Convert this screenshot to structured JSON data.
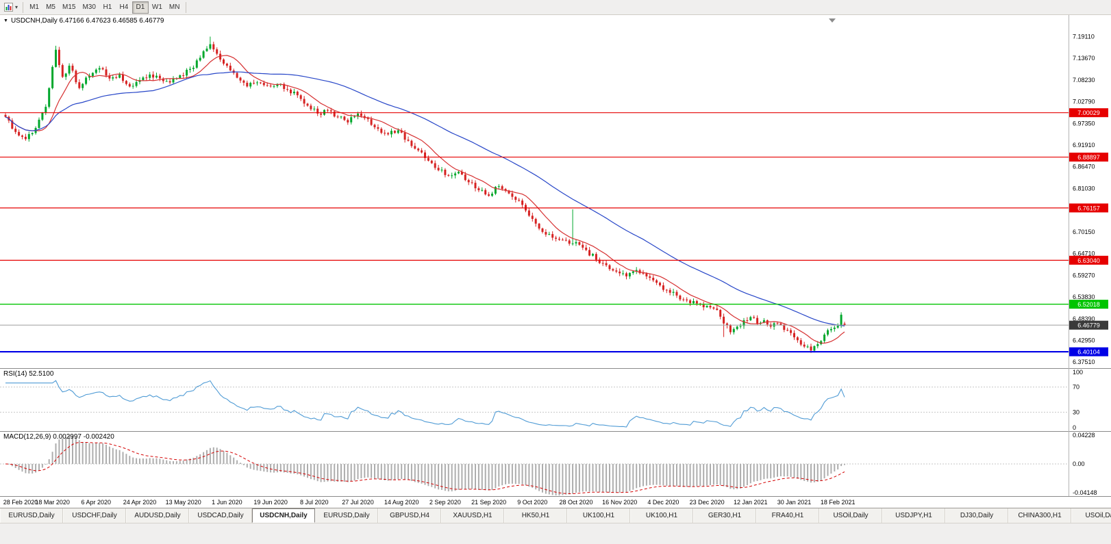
{
  "toolbar": {
    "timeframes": [
      {
        "label": "M1",
        "active": false
      },
      {
        "label": "M5",
        "active": false
      },
      {
        "label": "M15",
        "active": false
      },
      {
        "label": "M30",
        "active": false
      },
      {
        "label": "H1",
        "active": false
      },
      {
        "label": "H4",
        "active": false
      },
      {
        "label": "D1",
        "active": true
      },
      {
        "label": "W1",
        "active": false
      },
      {
        "label": "MN",
        "active": false
      }
    ]
  },
  "icons": {
    "toolbar_caret": "▾",
    "symbol_marker": "▼"
  },
  "chart": {
    "title_text": "USDCNH,Daily 6.47166 6.47623 6.46585 6.46779",
    "rsi_label": "RSI(14) 52.5100",
    "macd_label": "MACD(12,26,9) 0.002997 -0.002420"
  },
  "chart_data": {
    "type": "candlestick",
    "symbol": "USDCNH",
    "timeframe": "Daily",
    "ohlc_current": {
      "open": 6.47166,
      "high": 6.47623,
      "low": 6.46585,
      "close": 6.46779
    },
    "price_range": {
      "min": 6.36,
      "max": 7.245
    },
    "y_axis_ticks": [
      7.1911,
      7.1367,
      7.0823,
      7.0279,
      6.9735,
      6.9191,
      6.8647,
      6.8103,
      6.7559,
      6.7015,
      6.6471,
      6.5927,
      6.5383,
      6.4839,
      6.4295,
      6.3751
    ],
    "levels": [
      {
        "price": 7.00029,
        "label": "7.00029",
        "color": "#e60000",
        "width": 1.2
      },
      {
        "price": 6.88897,
        "label": "6.88897",
        "color": "#e60000",
        "width": 1.2
      },
      {
        "price": 6.76157,
        "label": "6.76157",
        "color": "#e60000",
        "width": 1.2
      },
      {
        "price": 6.6304,
        "label": "6.63040",
        "color": "#e60000",
        "width": 1.2
      },
      {
        "price": 6.52018,
        "label": "6.52018",
        "color": "#00c400",
        "width": 1.4
      },
      {
        "price": 6.40104,
        "label": "6.40104",
        "color": "#0000e6",
        "width": 2.2
      }
    ],
    "current_price": {
      "value": 6.46779,
      "label": "6.46779",
      "badge_color": "#3a3a3a",
      "line_color": "#9c9c9c"
    },
    "x_axis_dates": [
      "28 Feb 2020",
      "18 Mar 2020",
      "6 Apr 2020",
      "24 Apr 2020",
      "13 May 2020",
      "1 Jun 2020",
      "19 Jun 2020",
      "8 Jul 2020",
      "27 Jul 2020",
      "14 Aug 2020",
      "2 Sep 2020",
      "21 Sep 2020",
      "9 Oct 2020",
      "28 Oct 2020",
      "16 Nov 2020",
      "4 Dec 2020",
      "23 Dec 2020",
      "12 Jan 2021",
      "30 Jan 2021",
      "18 Feb 2021"
    ],
    "bars_total": 251,
    "first_label_bar": 1,
    "label_spacing_bars": 13,
    "trend_anchors": [
      [
        0,
        6.99
      ],
      [
        3,
        6.952
      ],
      [
        6,
        6.934
      ],
      [
        9,
        6.962
      ],
      [
        12,
        7.015
      ],
      [
        14,
        7.115
      ],
      [
        15,
        7.158
      ],
      [
        17,
        7.09
      ],
      [
        19,
        7.118
      ],
      [
        22,
        7.062
      ],
      [
        25,
        7.092
      ],
      [
        28,
        7.112
      ],
      [
        31,
        7.086
      ],
      [
        34,
        7.096
      ],
      [
        37,
        7.066
      ],
      [
        40,
        7.082
      ],
      [
        43,
        7.096
      ],
      [
        46,
        7.086
      ],
      [
        49,
        7.076
      ],
      [
        52,
        7.094
      ],
      [
        55,
        7.11
      ],
      [
        58,
        7.138
      ],
      [
        61,
        7.172
      ],
      [
        63,
        7.148
      ],
      [
        66,
        7.118
      ],
      [
        69,
        7.088
      ],
      [
        72,
        7.066
      ],
      [
        75,
        7.076
      ],
      [
        78,
        7.068
      ],
      [
        81,
        7.072
      ],
      [
        84,
        7.058
      ],
      [
        87,
        7.044
      ],
      [
        90,
        7.018
      ],
      [
        93,
        6.998
      ],
      [
        96,
        7.006
      ],
      [
        99,
        6.99
      ],
      [
        102,
        6.976
      ],
      [
        105,
        6.998
      ],
      [
        108,
        6.984
      ],
      [
        111,
        6.96
      ],
      [
        114,
        6.946
      ],
      [
        117,
        6.956
      ],
      [
        120,
        6.93
      ],
      [
        123,
        6.906
      ],
      [
        126,
        6.88
      ],
      [
        129,
        6.856
      ],
      [
        132,
        6.842
      ],
      [
        135,
        6.852
      ],
      [
        138,
        6.826
      ],
      [
        141,
        6.806
      ],
      [
        144,
        6.792
      ],
      [
        147,
        6.816
      ],
      [
        150,
        6.798
      ],
      [
        153,
        6.78
      ],
      [
        156,
        6.742
      ],
      [
        159,
        6.71
      ],
      [
        162,
        6.696
      ],
      [
        165,
        6.682
      ],
      [
        168,
        6.672
      ],
      [
        170,
        6.676
      ],
      [
        173,
        6.656
      ],
      [
        176,
        6.632
      ],
      [
        179,
        6.618
      ],
      [
        182,
        6.602
      ],
      [
        185,
        6.59
      ],
      [
        188,
        6.606
      ],
      [
        191,
        6.59
      ],
      [
        194,
        6.574
      ],
      [
        197,
        6.556
      ],
      [
        200,
        6.542
      ],
      [
        203,
        6.53
      ],
      [
        206,
        6.522
      ],
      [
        209,
        6.516
      ],
      [
        212,
        6.506
      ],
      [
        214,
        6.472
      ],
      [
        216,
        6.45
      ],
      [
        218,
        6.464
      ],
      [
        220,
        6.48
      ],
      [
        222,
        6.488
      ],
      [
        224,
        6.472
      ],
      [
        226,
        6.48
      ],
      [
        228,
        6.464
      ],
      [
        230,
        6.472
      ],
      [
        232,
        6.456
      ],
      [
        234,
        6.448
      ],
      [
        236,
        6.43
      ],
      [
        238,
        6.414
      ],
      [
        240,
        6.404
      ],
      [
        242,
        6.42
      ],
      [
        244,
        6.444
      ],
      [
        246,
        6.458
      ],
      [
        248,
        6.466
      ],
      [
        249,
        6.494
      ],
      [
        250,
        6.46779
      ]
    ],
    "spikes": [
      [
        15,
        "high",
        7.168
      ],
      [
        61,
        "high",
        7.191
      ],
      [
        169,
        "high",
        6.758
      ],
      [
        214,
        "low",
        6.438
      ],
      [
        240,
        "low",
        6.398
      ]
    ],
    "moving_averages": [
      {
        "period": 10,
        "color": "#d63031"
      },
      {
        "period": 45,
        "color": "#2746c8"
      }
    ],
    "candle_up_color": "#00a72c",
    "candle_down_color": "#d62222",
    "rsi": {
      "period": 14,
      "current": 52.51,
      "axis_labels": [
        100,
        70,
        30,
        0
      ],
      "guide_levels": [
        70,
        30
      ],
      "color": "#4f9bd5"
    },
    "macd": {
      "fast": 12,
      "slow": 26,
      "signal": 9,
      "current_macd": 0.002997,
      "current_signal": -0.00242,
      "axis_labels": [
        "0.04228",
        "0.00",
        "-0.04148"
      ],
      "range": {
        "min": -0.04148,
        "max": 0.04228
      },
      "hist_color": "#adadad",
      "signal_color": "#d40000"
    }
  },
  "tabs": [
    {
      "label": "EURUSD,Daily",
      "active": false
    },
    {
      "label": "USDCHF,Daily",
      "active": false
    },
    {
      "label": "AUDUSD,Daily",
      "active": false
    },
    {
      "label": "USDCAD,Daily",
      "active": false
    },
    {
      "label": "USDCNH,Daily",
      "active": true
    },
    {
      "label": "EURUSD,Daily",
      "active": false
    },
    {
      "label": "GBPUSD,H4",
      "active": false
    },
    {
      "label": "XAUUSD,H1",
      "active": false
    },
    {
      "label": "HK50,H1",
      "active": false
    },
    {
      "label": "UK100,H1",
      "active": false
    },
    {
      "label": "UK100,H1",
      "active": false
    },
    {
      "label": "GER30,H1",
      "active": false
    },
    {
      "label": "FRA40,H1",
      "active": false
    },
    {
      "label": "USOil,Daily",
      "active": false
    },
    {
      "label": "USDJPY,H1",
      "active": false
    },
    {
      "label": "DJ30,Daily",
      "active": false
    },
    {
      "label": "CHINA300,H1",
      "active": false
    },
    {
      "label": "USOil,Daily",
      "active": false
    }
  ]
}
